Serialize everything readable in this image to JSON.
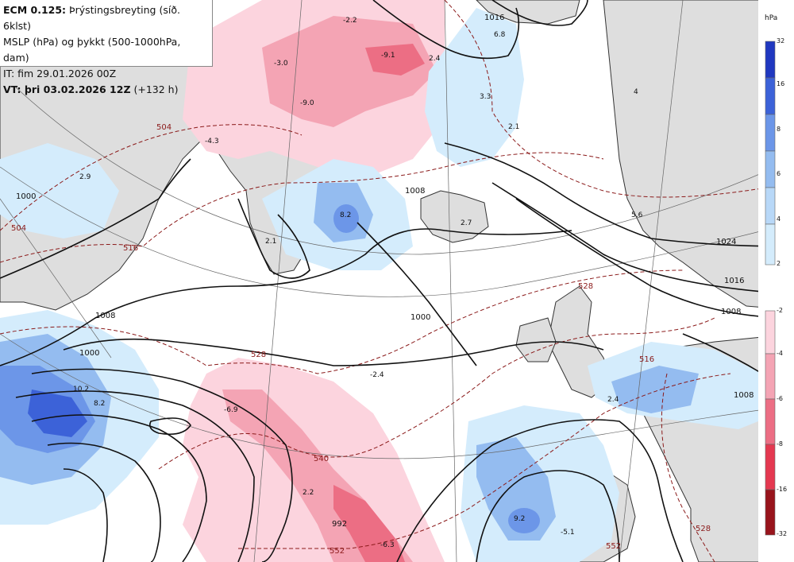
{
  "header": {
    "line1_bold": "ECM 0.125:",
    "line1_rest": " Þrýstingsbreyting (síð. 6klst)",
    "line2": "MSLP (hPa) og þykkt (500-1000hPa, dam)",
    "line3": "IT: fim 29.01.2026 00Z",
    "line4_bold": "VT: þri 03.02.2026 12Z",
    "line4_rest": " (+132 h)"
  },
  "legend": {
    "unit": "hPa",
    "rise": {
      "ticks": [
        "32",
        "16",
        "8",
        "6",
        "4",
        "2"
      ],
      "colors": [
        "#2038c0",
        "#3c62d8",
        "#6c96e8",
        "#94bcf0",
        "#b8d8f8",
        "#d4ecfc"
      ]
    },
    "fall": {
      "ticks": [
        "-2",
        "-4",
        "-6",
        "-8",
        "-16",
        "-32"
      ],
      "colors": [
        "#fcd4de",
        "#f4a4b4",
        "#ec6e84",
        "#e43850",
        "#c81c2c",
        "#98141c"
      ]
    }
  },
  "isobar_labels": [
    "1000",
    "1008",
    "1008",
    "1000",
    "1024",
    "1016",
    "1008",
    "992",
    "1016",
    "1000",
    "1008"
  ],
  "thickness_labels": [
    "504",
    "504",
    "516",
    "528",
    "540",
    "552",
    "528",
    "516",
    "528",
    "552"
  ],
  "tendency_labels": [
    "-3.0",
    "-2.2",
    "-9.1",
    "2.4",
    "6.8",
    "3.3",
    "2.1",
    "-9.0",
    "-4.3",
    "2.9",
    "2.1",
    "8.2",
    "2.7",
    "5.6",
    "4",
    "-2.4",
    "-6.9",
    "10.2",
    "2.2",
    "-6.3",
    "9.2",
    "-5.1",
    "2.4",
    "8.2"
  ],
  "colors": {
    "land": "#dedede",
    "coast": "#333333",
    "isobar": "#111111",
    "thickness": "#8b1a1a",
    "grid": "#555555"
  }
}
